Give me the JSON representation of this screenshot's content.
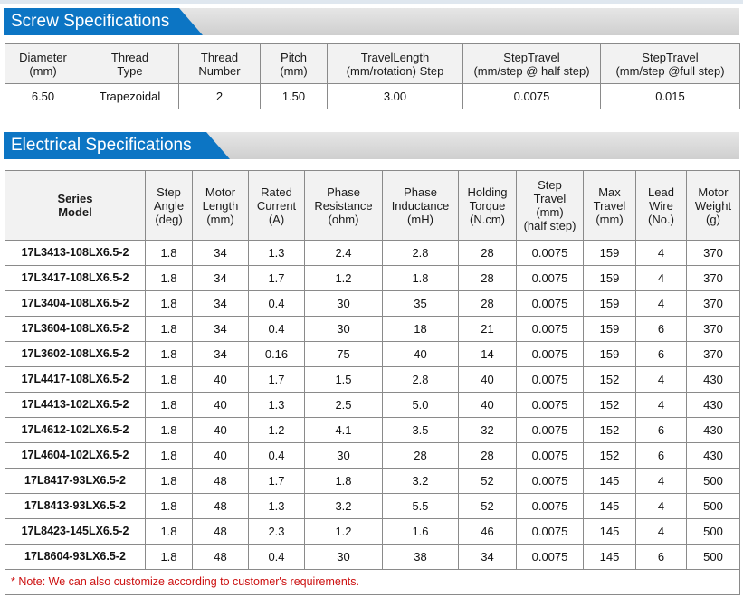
{
  "screw_section": {
    "title": "Screw Specifications",
    "headers": [
      [
        "Diameter",
        "(mm)"
      ],
      [
        "Thread",
        "Type"
      ],
      [
        "Thread",
        "Number"
      ],
      [
        "Pitch",
        "(mm)"
      ],
      [
        "TravelLength",
        "(mm/rotation) Step"
      ],
      [
        "StepTravel",
        "(mm/step @ half step)"
      ],
      [
        "StepTravel",
        "(mm/step @full step)"
      ]
    ],
    "row": [
      "6.50",
      "Trapezoidal",
      "2",
      "1.50",
      "3.00",
      "0.0075",
      "0.015"
    ]
  },
  "electrical_section": {
    "title": "Electrical Specifications",
    "headers": [
      [
        "Series",
        "Model"
      ],
      [
        "Step",
        "Angle",
        "(deg)"
      ],
      [
        "Motor",
        "Length",
        "(mm)"
      ],
      [
        "Rated",
        "Current",
        "(A)"
      ],
      [
        "Phase",
        "Resistance",
        "(ohm)"
      ],
      [
        "Phase",
        "Inductance",
        "(mH)"
      ],
      [
        "Holding",
        "Torque",
        "(N.cm)"
      ],
      [
        "Step",
        "Travel",
        "(mm)",
        "(half step)"
      ],
      [
        "Max",
        "Travel",
        "(mm)"
      ],
      [
        "Lead",
        "Wire",
        "(No.)"
      ],
      [
        "Motor",
        "Weight",
        "(g)"
      ]
    ],
    "rows": [
      [
        "17L3413-108LX6.5-2",
        "1.8",
        "34",
        "1.3",
        "2.4",
        "2.8",
        "28",
        "0.0075",
        "159",
        "4",
        "370"
      ],
      [
        "17L3417-108LX6.5-2",
        "1.8",
        "34",
        "1.7",
        "1.2",
        "1.8",
        "28",
        "0.0075",
        "159",
        "4",
        "370"
      ],
      [
        "17L3404-108LX6.5-2",
        "1.8",
        "34",
        "0.4",
        "30",
        "35",
        "28",
        "0.0075",
        "159",
        "4",
        "370"
      ],
      [
        "17L3604-108LX6.5-2",
        "1.8",
        "34",
        "0.4",
        "30",
        "18",
        "21",
        "0.0075",
        "159",
        "6",
        "370"
      ],
      [
        "17L3602-108LX6.5-2",
        "1.8",
        "34",
        "0.16",
        "75",
        "40",
        "14",
        "0.0075",
        "159",
        "6",
        "370"
      ],
      [
        "17L4417-108LX6.5-2",
        "1.8",
        "40",
        "1.7",
        "1.5",
        "2.8",
        "40",
        "0.0075",
        "152",
        "4",
        "430"
      ],
      [
        "17L4413-102LX6.5-2",
        "1.8",
        "40",
        "1.3",
        "2.5",
        "5.0",
        "40",
        "0.0075",
        "152",
        "4",
        "430"
      ],
      [
        "17L4612-102LX6.5-2",
        "1.8",
        "40",
        "1.2",
        "4.1",
        "3.5",
        "32",
        "0.0075",
        "152",
        "6",
        "430"
      ],
      [
        "17L4604-102LX6.5-2",
        "1.8",
        "40",
        "0.4",
        "30",
        "28",
        "28",
        "0.0075",
        "152",
        "6",
        "430"
      ],
      [
        "17L8417-93LX6.5-2",
        "1.8",
        "48",
        "1.7",
        "1.8",
        "3.2",
        "52",
        "0.0075",
        "145",
        "4",
        "500"
      ],
      [
        "17L8413-93LX6.5-2",
        "1.8",
        "48",
        "1.3",
        "3.2",
        "5.5",
        "52",
        "0.0075",
        "145",
        "4",
        "500"
      ],
      [
        "17L8423-145LX6.5-2",
        "1.8",
        "48",
        "2.3",
        "1.2",
        "1.6",
        "46",
        "0.0075",
        "145",
        "4",
        "500"
      ],
      [
        "17L8604-93LX6.5-2",
        "1.8",
        "48",
        "0.4",
        "30",
        "38",
        "34",
        "0.0075",
        "145",
        "6",
        "500"
      ]
    ],
    "note": "* Note: We can also customize according to customer's requirements."
  },
  "colors": {
    "tab_blue": "#0c75c4",
    "note_red": "#cc1111",
    "header_bg": "#f2f2f2"
  }
}
